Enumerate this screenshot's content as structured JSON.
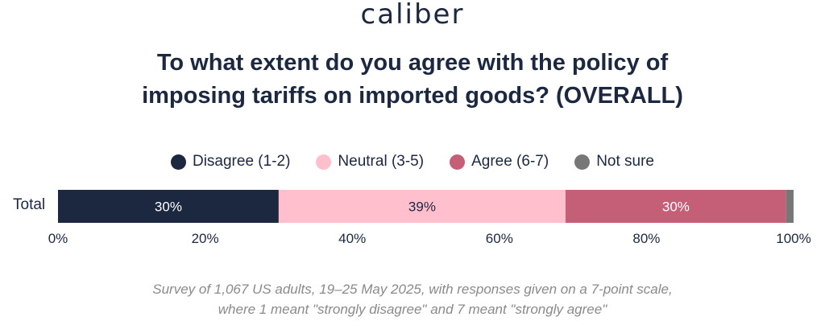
{
  "logo": "caliber",
  "title_line1": "To what extent do you agree with the policy of",
  "title_line2": "imposing tariffs on imported goods? (OVERALL)",
  "footnote_line1": "Survey of 1,067 US adults, 19–25 May 2025, with responses given on a 7-point scale,",
  "footnote_line2": "where 1 meant \"strongly disagree\" and 7 meant \"strongly agree\"",
  "legend": [
    {
      "label": "Disagree (1-2)",
      "color": "#1b2840"
    },
    {
      "label": "Neutral (3-5)",
      "color": "#ffbfcc"
    },
    {
      "label": "Agree (6-7)",
      "color": "#c45f77"
    },
    {
      "label": "Not sure",
      "color": "#777777"
    }
  ],
  "chart_data": {
    "type": "bar",
    "orientation": "horizontal",
    "stacked": true,
    "categories": [
      "Total"
    ],
    "series": [
      {
        "name": "Disagree (1-2)",
        "values": [
          30
        ],
        "label": "30%",
        "color": "#1b2840",
        "label_color": "#ffffff"
      },
      {
        "name": "Neutral (3-5)",
        "values": [
          39
        ],
        "label": "39%",
        "color": "#ffbfcc",
        "label_color": "#1b2840"
      },
      {
        "name": "Agree (6-7)",
        "values": [
          30
        ],
        "label": "30%",
        "color": "#c45f77",
        "label_color": "#ffffff"
      },
      {
        "name": "Not sure",
        "values": [
          1
        ],
        "label": "",
        "color": "#777777",
        "label_color": "#ffffff"
      }
    ],
    "xlim": [
      0,
      100
    ],
    "x_ticks": [
      "0%",
      "20%",
      "40%",
      "60%",
      "80%",
      "100%"
    ],
    "grid": false,
    "legend_position": "top"
  }
}
